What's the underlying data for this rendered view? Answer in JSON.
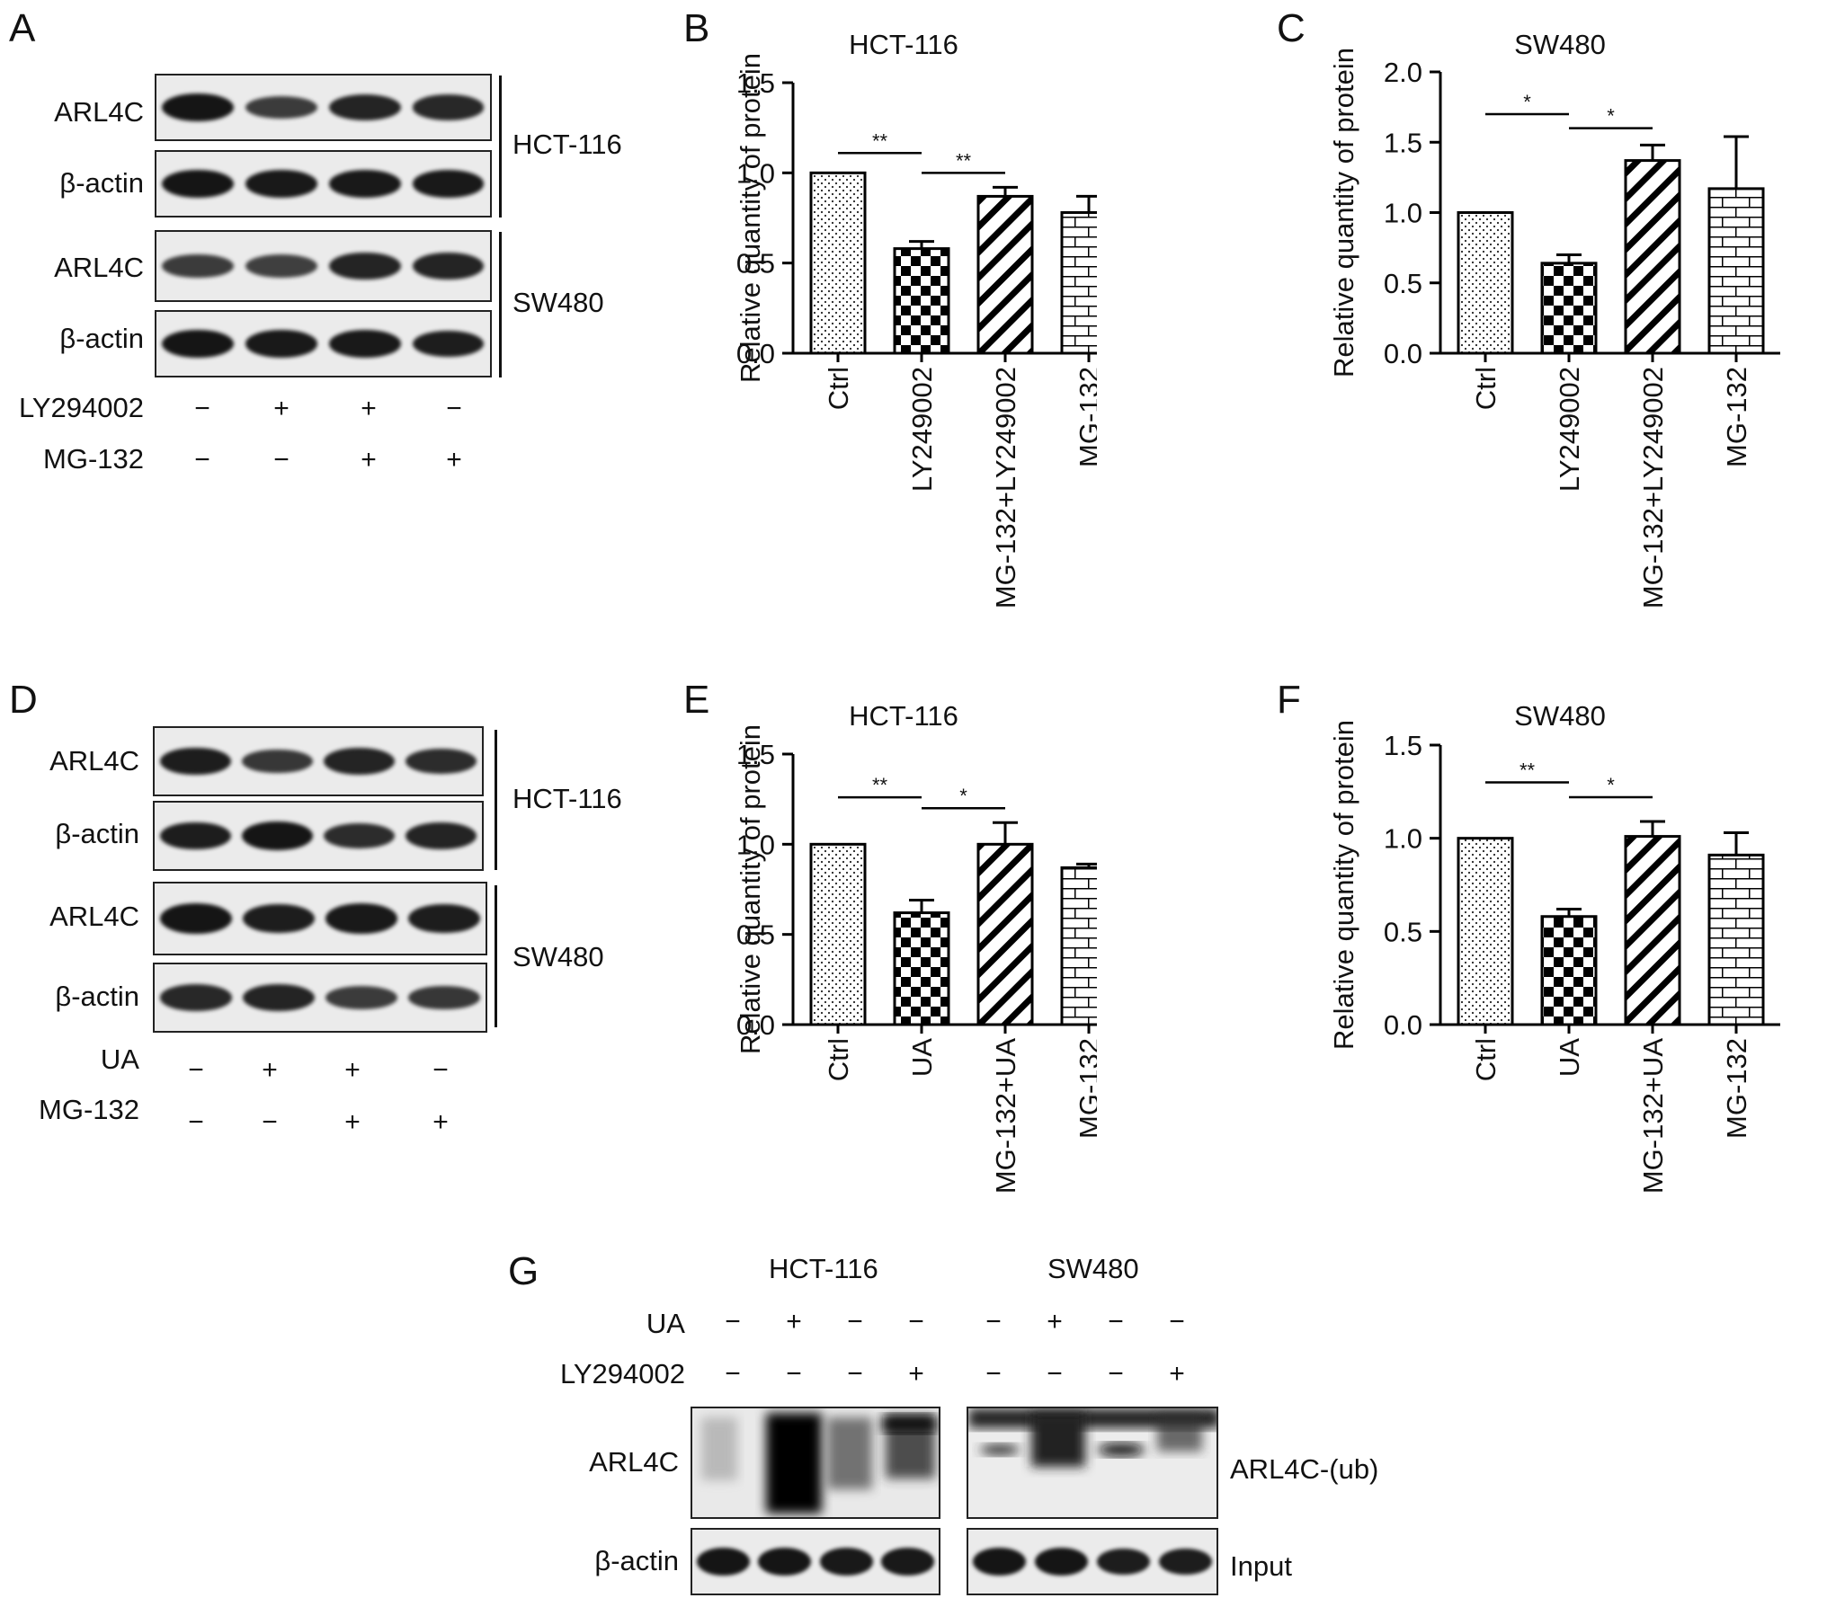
{
  "panels": {
    "A": {
      "letter": "A",
      "row_labels": [
        "ARL4C",
        "β-actin",
        "ARL4C",
        "β-actin"
      ],
      "cell_lines": [
        "HCT-116",
        "SW480"
      ],
      "treatments": [
        {
          "label": "LY294002",
          "signs": [
            "−",
            "+",
            "+",
            "−"
          ]
        },
        {
          "label": "MG-132",
          "signs": [
            "−",
            "−",
            "+",
            "+"
          ]
        }
      ],
      "band_intensity": [
        [
          1.0,
          0.6,
          0.85,
          0.8
        ],
        [
          1.0,
          0.95,
          0.95,
          0.95
        ],
        [
          0.6,
          0.55,
          0.85,
          0.85
        ],
        [
          1.0,
          0.95,
          0.95,
          0.9
        ]
      ]
    },
    "D": {
      "letter": "D",
      "row_labels": [
        "ARL4C",
        "β-actin",
        "ARL4C",
        "β-actin"
      ],
      "cell_lines": [
        "HCT-116",
        "SW480"
      ],
      "treatments": [
        {
          "label": "UA",
          "signs": [
            "−",
            "+",
            "+",
            "−"
          ]
        },
        {
          "label": "MG-132",
          "signs": [
            "−",
            "−",
            "+",
            "+"
          ]
        }
      ],
      "band_intensity": [
        [
          0.9,
          0.65,
          0.85,
          0.75
        ],
        [
          0.9,
          1.0,
          0.75,
          0.85
        ],
        [
          1.0,
          0.9,
          0.95,
          0.9
        ],
        [
          0.8,
          0.85,
          0.6,
          0.65
        ]
      ]
    },
    "G": {
      "letter": "G",
      "cell_lines": [
        "HCT-116",
        "SW480"
      ],
      "treatments": [
        {
          "label": "UA",
          "signs": [
            "−",
            "+",
            "−",
            "−",
            "−",
            "+",
            "−",
            "−"
          ]
        },
        {
          "label": "LY294002",
          "signs": [
            "−",
            "−",
            "−",
            "+",
            "−",
            "−",
            "−",
            "+"
          ]
        }
      ],
      "row_labels": [
        "ARL4C",
        "β-actin"
      ],
      "right_labels": [
        "ARL4C-(ub)",
        "Input"
      ]
    }
  },
  "chart_data": [
    {
      "panel": "B",
      "type": "bar",
      "title": "HCT-116",
      "ylabel": "Relative quantity of protein",
      "categories": [
        "Ctrl",
        "LY249002",
        "MG-132+LY249002",
        "MG-132"
      ],
      "values": [
        1.0,
        0.58,
        0.87,
        0.78
      ],
      "errors": [
        0,
        0.04,
        0.05,
        0.09
      ],
      "ylim": [
        0,
        1.5
      ],
      "yticks": [
        "0.0",
        "0.5",
        "1.0",
        "1.5"
      ],
      "patterns": [
        "dots",
        "checker",
        "diagonal",
        "brick"
      ],
      "significance": [
        {
          "from": 0,
          "to": 1,
          "label": "**",
          "y": 1.11
        },
        {
          "from": 1,
          "to": 2,
          "label": "**",
          "y": 1.0
        }
      ]
    },
    {
      "panel": "C",
      "type": "bar",
      "title": "SW480",
      "ylabel": "Relative quantity of protein",
      "categories": [
        "Ctrl",
        "LY249002",
        "MG-132+LY249002",
        "MG-132"
      ],
      "values": [
        1.0,
        0.64,
        1.37,
        1.17
      ],
      "errors": [
        0,
        0.06,
        0.11,
        0.37
      ],
      "ylim": [
        0,
        2.0
      ],
      "yticks": [
        "0.0",
        "0.5",
        "1.0",
        "1.5",
        "2.0"
      ],
      "patterns": [
        "dots",
        "checker",
        "diagonal",
        "brick"
      ],
      "significance": [
        {
          "from": 0,
          "to": 1,
          "label": "*",
          "y": 1.7
        },
        {
          "from": 1,
          "to": 2,
          "label": "*",
          "y": 1.6
        }
      ]
    },
    {
      "panel": "E",
      "type": "bar",
      "title": "HCT-116",
      "ylabel": "Relative quantity of protein",
      "categories": [
        "Ctrl",
        "UA",
        "MG-132+UA",
        "MG-132"
      ],
      "values": [
        1.0,
        0.62,
        1.0,
        0.87
      ],
      "errors": [
        0,
        0.07,
        0.12,
        0.02
      ],
      "ylim": [
        0,
        1.5
      ],
      "yticks": [
        "0.0",
        "0.5",
        "1.0",
        "1.5"
      ],
      "patterns": [
        "dots",
        "checker",
        "diagonal",
        "brick"
      ],
      "significance": [
        {
          "from": 0,
          "to": 1,
          "label": "**",
          "y": 1.26
        },
        {
          "from": 1,
          "to": 2,
          "label": "*",
          "y": 1.2
        }
      ]
    },
    {
      "panel": "F",
      "type": "bar",
      "title": "SW480",
      "ylabel": "Relative quantity of protein",
      "categories": [
        "Ctrl",
        "UA",
        "MG-132+UA",
        "MG-132"
      ],
      "values": [
        1.0,
        0.58,
        1.01,
        0.91
      ],
      "errors": [
        0,
        0.04,
        0.08,
        0.12
      ],
      "ylim": [
        0,
        1.5
      ],
      "yticks": [
        "0.0",
        "0.5",
        "1.0",
        "1.5"
      ],
      "patterns": [
        "dots",
        "checker",
        "diagonal",
        "brick"
      ],
      "significance": [
        {
          "from": 0,
          "to": 1,
          "label": "**",
          "y": 1.3
        },
        {
          "from": 1,
          "to": 2,
          "label": "*",
          "y": 1.22
        }
      ]
    }
  ]
}
